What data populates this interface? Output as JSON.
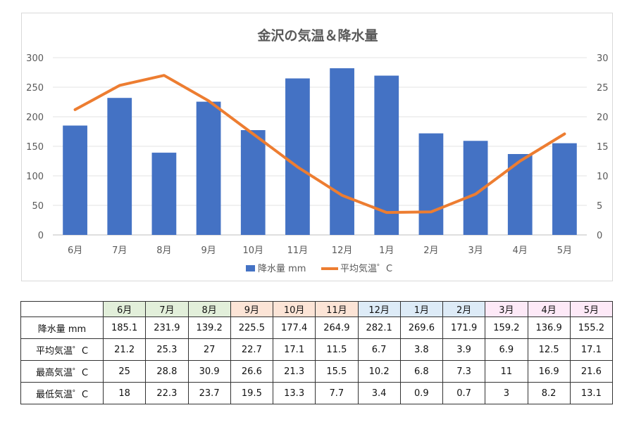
{
  "chart_data": {
    "type": "bar+line",
    "title": "金沢の気温＆降水量",
    "categories": [
      "6月",
      "7月",
      "8月",
      "9月",
      "10月",
      "11月",
      "12月",
      "1月",
      "2月",
      "3月",
      "4月",
      "5月"
    ],
    "series": [
      {
        "name": "降水量 mm",
        "type": "bar",
        "axis": "left",
        "color": "#4472c4",
        "values": [
          185.1,
          231.9,
          139.2,
          225.5,
          177.4,
          264.9,
          282.1,
          269.6,
          171.9,
          159.2,
          136.9,
          155.2
        ]
      },
      {
        "name": "平均気温゜C",
        "type": "line",
        "axis": "right",
        "color": "#ed7d31",
        "values": [
          21.2,
          25.3,
          27,
          22.7,
          17.1,
          11.5,
          6.7,
          3.8,
          3.9,
          6.9,
          12.5,
          17.1
        ]
      }
    ],
    "y_left": {
      "min": 0,
      "max": 300,
      "ticks": [
        "0",
        "50",
        "100",
        "150",
        "200",
        "250",
        "300"
      ]
    },
    "y_right": {
      "min": 0,
      "max": 30,
      "ticks": [
        "0",
        "5",
        "10",
        "15",
        "20",
        "25",
        "30"
      ]
    },
    "grid": true,
    "legend": "bottom"
  },
  "table": {
    "header_colors": [
      "#e2efda",
      "#e2efda",
      "#e2efda",
      "#fce4d6",
      "#fce4d6",
      "#fce4d6",
      "#ddebf7",
      "#ddebf7",
      "#ddebf7",
      "#fde9f7",
      "#fde9f7",
      "#fde9f7"
    ],
    "rows": [
      {
        "label": "降水量 mm",
        "cells": [
          "185.1",
          "231.9",
          "139.2",
          "225.5",
          "177.4",
          "264.9",
          "282.1",
          "269.6",
          "171.9",
          "159.2",
          "136.9",
          "155.2"
        ]
      },
      {
        "label": "平均気温゜C",
        "cells": [
          "21.2",
          "25.3",
          "27",
          "22.7",
          "17.1",
          "11.5",
          "6.7",
          "3.8",
          "3.9",
          "6.9",
          "12.5",
          "17.1"
        ]
      },
      {
        "label": "最高気温゜C",
        "cells": [
          "25",
          "28.8",
          "30.9",
          "26.6",
          "21.3",
          "15.5",
          "10.2",
          "6.8",
          "7.3",
          "11",
          "16.9",
          "21.6"
        ]
      },
      {
        "label": "最低気温゜C",
        "cells": [
          "18",
          "22.3",
          "23.7",
          "19.5",
          "13.3",
          "7.7",
          "3.4",
          "0.9",
          "0.7",
          "3",
          "8.2",
          "13.1"
        ]
      }
    ]
  }
}
